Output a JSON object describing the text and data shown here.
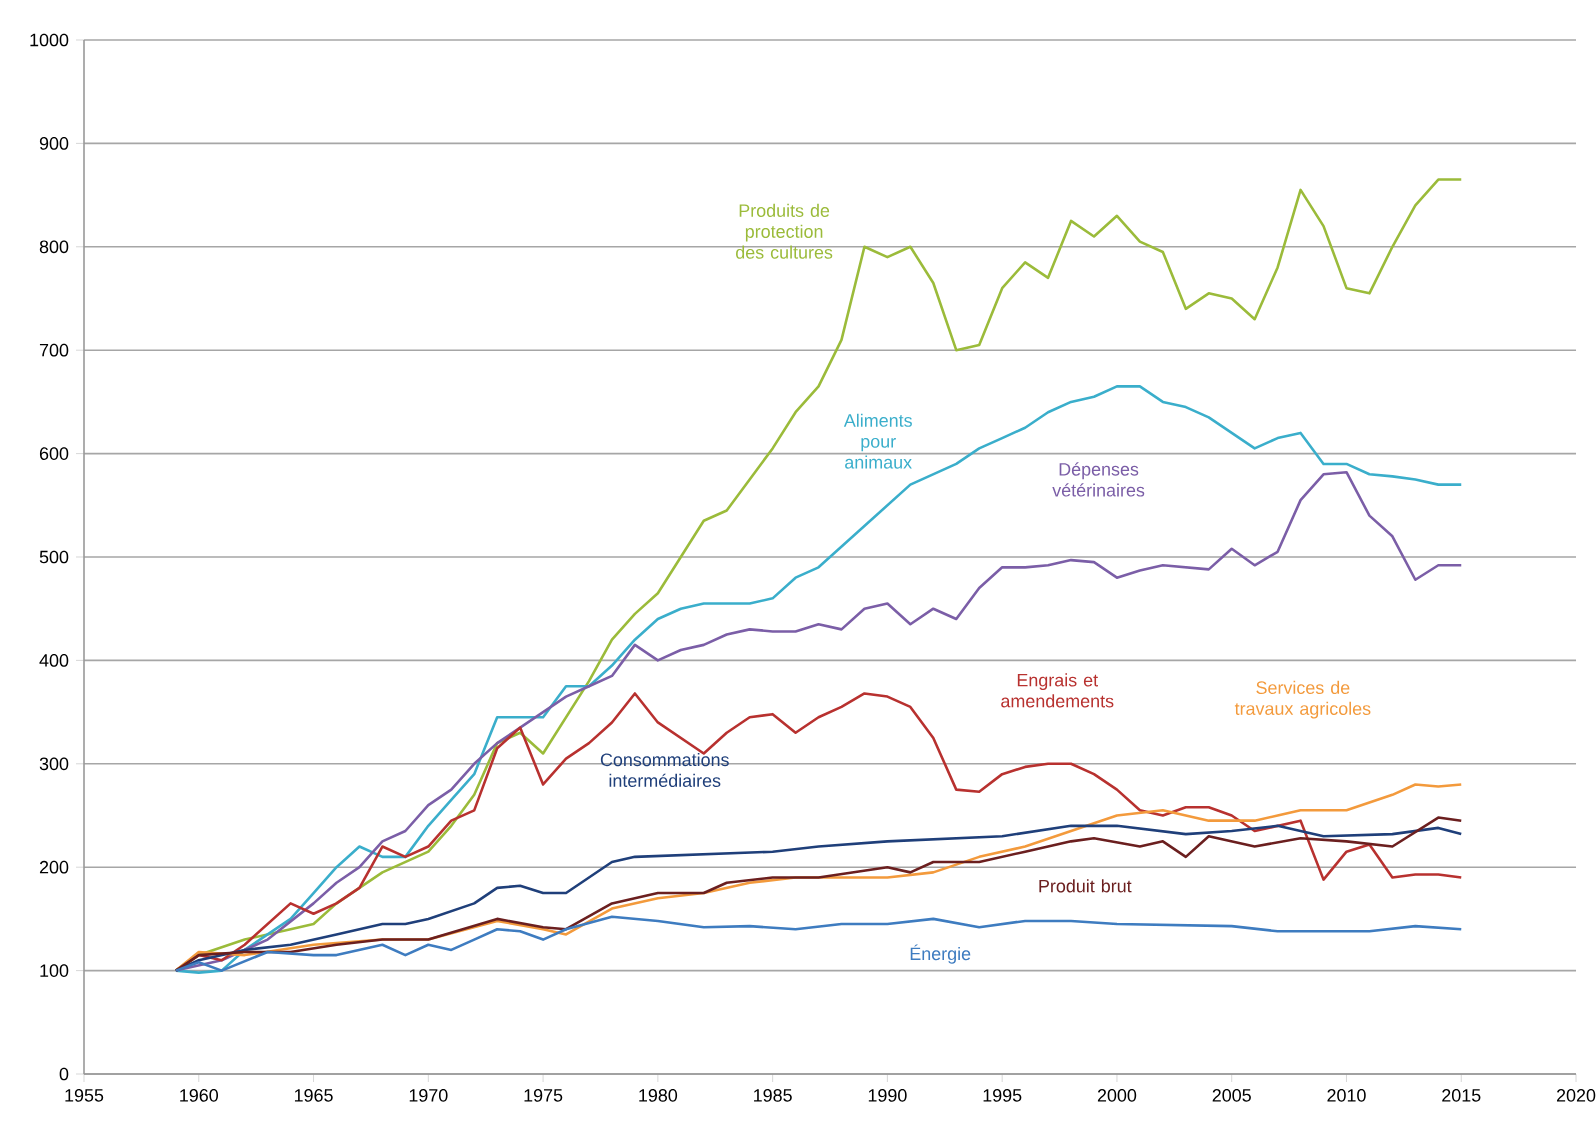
{
  "chart_data": {
    "type": "line",
    "xlim": [
      1955,
      2020
    ],
    "ylim": [
      0,
      1000
    ],
    "xticks": [
      1955,
      1960,
      1965,
      1970,
      1975,
      1980,
      1985,
      1990,
      1995,
      2000,
      2005,
      2010,
      2015,
      2020
    ],
    "yticks": [
      0,
      100,
      200,
      300,
      400,
      500,
      600,
      700,
      800,
      900,
      1000
    ],
    "grid": "y",
    "marker": "none",
    "series": [
      {
        "name": "Produits de protection des cultures",
        "color": "#9bbb3a",
        "x": [
          1959,
          1960,
          1962,
          1964,
          1965,
          1966,
          1968,
          1970,
          1971,
          1972,
          1973,
          1974,
          1975,
          1976,
          1977,
          1978,
          1979,
          1980,
          1981,
          1982,
          1983,
          1984,
          1985,
          1986,
          1987,
          1988,
          1989,
          1990,
          1991,
          1992,
          1993,
          1994,
          1995,
          1996,
          1997,
          1998,
          1999,
          2000,
          2001,
          2002,
          2003,
          2004,
          2005,
          2006,
          2007,
          2008,
          2009,
          2010,
          2011,
          2012,
          2013,
          2014,
          2015
        ],
        "values": [
          100,
          115,
          130,
          140,
          145,
          165,
          195,
          215,
          240,
          270,
          320,
          330,
          310,
          345,
          380,
          420,
          445,
          465,
          500,
          535,
          545,
          575,
          605,
          640,
          665,
          710,
          800,
          790,
          800,
          765,
          700,
          705,
          760,
          785,
          770,
          825,
          810,
          830,
          805,
          795,
          740,
          755,
          750,
          730,
          780,
          855,
          820,
          760,
          755,
          800,
          840,
          865,
          865
        ]
      },
      {
        "name": "Aliments pour animaux",
        "color": "#3aaecb",
        "x": [
          1959,
          1960,
          1961,
          1962,
          1963,
          1964,
          1965,
          1966,
          1967,
          1968,
          1969,
          1970,
          1971,
          1972,
          1973,
          1974,
          1975,
          1976,
          1977,
          1978,
          1979,
          1980,
          1981,
          1982,
          1983,
          1984,
          1985,
          1986,
          1987,
          1988,
          1989,
          1990,
          1991,
          1992,
          1993,
          1994,
          1995,
          1996,
          1997,
          1998,
          1999,
          2000,
          2001,
          2002,
          2003,
          2004,
          2005,
          2006,
          2007,
          2008,
          2009,
          2010,
          2011,
          2012,
          2013,
          2014,
          2015
        ],
        "values": [
          100,
          98,
          100,
          120,
          135,
          150,
          175,
          200,
          220,
          210,
          210,
          240,
          265,
          290,
          345,
          345,
          345,
          375,
          375,
          395,
          420,
          440,
          450,
          455,
          455,
          455,
          460,
          480,
          490,
          510,
          530,
          550,
          570,
          580,
          590,
          605,
          615,
          625,
          640,
          650,
          655,
          665,
          665,
          650,
          645,
          635,
          620,
          605,
          615,
          620,
          590,
          590,
          580,
          578,
          575,
          570,
          570
        ]
      },
      {
        "name": "Dépenses vétérinaires",
        "color": "#7b5ea7",
        "x": [
          1959,
          1961,
          1963,
          1965,
          1966,
          1967,
          1968,
          1969,
          1970,
          1971,
          1972,
          1973,
          1974,
          1975,
          1976,
          1977,
          1978,
          1979,
          1980,
          1981,
          1982,
          1983,
          1984,
          1985,
          1986,
          1987,
          1988,
          1989,
          1990,
          1991,
          1992,
          1993,
          1994,
          1995,
          1996,
          1997,
          1998,
          1999,
          2000,
          2001,
          2002,
          2003,
          2004,
          2005,
          2006,
          2007,
          2008,
          2009,
          2010,
          2011,
          2012,
          2013,
          2014,
          2015
        ],
        "values": [
          100,
          110,
          130,
          165,
          185,
          200,
          225,
          235,
          260,
          275,
          300,
          320,
          335,
          350,
          365,
          375,
          385,
          415,
          400,
          410,
          415,
          425,
          430,
          428,
          428,
          435,
          430,
          450,
          455,
          435,
          450,
          440,
          470,
          490,
          490,
          492,
          497,
          495,
          480,
          487,
          492,
          490,
          488,
          508,
          492,
          505,
          555,
          580,
          582,
          540,
          520,
          478,
          492,
          492
        ]
      },
      {
        "name": "Engrais et amendements",
        "color": "#b8312f",
        "x": [
          1959,
          1960,
          1961,
          1962,
          1963,
          1964,
          1965,
          1966,
          1967,
          1968,
          1969,
          1970,
          1971,
          1972,
          1973,
          1974,
          1975,
          1976,
          1977,
          1978,
          1979,
          1980,
          1981,
          1982,
          1983,
          1984,
          1985,
          1986,
          1987,
          1988,
          1989,
          1990,
          1991,
          1992,
          1993,
          1994,
          1995,
          1996,
          1997,
          1998,
          1999,
          2000,
          2001,
          2002,
          2003,
          2004,
          2005,
          2006,
          2007,
          2008,
          2009,
          2010,
          2011,
          2012,
          2013,
          2014,
          2015
        ],
        "values": [
          100,
          115,
          110,
          125,
          145,
          165,
          155,
          165,
          180,
          220,
          210,
          220,
          245,
          255,
          315,
          335,
          280,
          305,
          320,
          340,
          368,
          340,
          325,
          310,
          330,
          345,
          348,
          330,
          345,
          355,
          368,
          365,
          355,
          325,
          275,
          273,
          290,
          297,
          300,
          300,
          290,
          275,
          255,
          250,
          258,
          258,
          250,
          235,
          240,
          245,
          188,
          215,
          222,
          190,
          193,
          193,
          190
        ]
      },
      {
        "name": "Services de travaux agricoles",
        "color": "#f39a3c",
        "x": [
          1959,
          1960,
          1962,
          1965,
          1968,
          1970,
          1973,
          1975,
          1976,
          1978,
          1980,
          1982,
          1984,
          1986,
          1988,
          1990,
          1992,
          1994,
          1996,
          1998,
          2000,
          2002,
          2004,
          2006,
          2007,
          2008,
          2010,
          2012,
          2013,
          2014,
          2015
        ],
        "values": [
          100,
          118,
          115,
          125,
          130,
          130,
          148,
          140,
          135,
          160,
          170,
          175,
          185,
          190,
          190,
          190,
          195,
          210,
          220,
          235,
          250,
          255,
          245,
          245,
          250,
          255,
          255,
          270,
          280,
          278,
          280
        ]
      },
      {
        "name": "Consommations intermédiaires",
        "color": "#1f3f7a",
        "x": [
          1959,
          1960,
          1962,
          1964,
          1966,
          1968,
          1969,
          1970,
          1972,
          1973,
          1974,
          1975,
          1976,
          1977,
          1978,
          1979,
          1985,
          1987,
          1990,
          1995,
          1998,
          2000,
          2003,
          2005,
          2007,
          2008,
          2009,
          2012,
          2014,
          2015
        ],
        "values": [
          100,
          110,
          120,
          125,
          135,
          145,
          145,
          150,
          165,
          180,
          182,
          175,
          175,
          190,
          205,
          210,
          215,
          220,
          225,
          230,
          240,
          240,
          232,
          235,
          240,
          235,
          230,
          232,
          238,
          232
        ]
      },
      {
        "name": "Produit brut",
        "color": "#6b1f1f",
        "x": [
          1959,
          1960,
          1962,
          1964,
          1966,
          1968,
          1970,
          1973,
          1975,
          1976,
          1978,
          1980,
          1982,
          1983,
          1985,
          1987,
          1990,
          1991,
          1992,
          1994,
          1996,
          1998,
          1999,
          2001,
          2002,
          2003,
          2004,
          2006,
          2008,
          2010,
          2012,
          2014,
          2015
        ],
        "values": [
          100,
          115,
          118,
          118,
          125,
          130,
          130,
          150,
          142,
          140,
          165,
          175,
          175,
          185,
          190,
          190,
          200,
          195,
          205,
          205,
          215,
          225,
          228,
          220,
          225,
          210,
          230,
          220,
          228,
          225,
          220,
          248,
          245
        ]
      },
      {
        "name": "Énergie",
        "color": "#3e7cc0",
        "x": [
          1959,
          1960,
          1961,
          1963,
          1965,
          1966,
          1968,
          1969,
          1970,
          1971,
          1972,
          1973,
          1974,
          1975,
          1976,
          1978,
          1980,
          1982,
          1984,
          1986,
          1988,
          1990,
          1992,
          1994,
          1996,
          1998,
          2000,
          2005,
          2007,
          2011,
          2013,
          2015
        ],
        "values": [
          100,
          108,
          100,
          118,
          115,
          115,
          125,
          115,
          125,
          120,
          130,
          140,
          138,
          130,
          140,
          152,
          148,
          142,
          143,
          140,
          145,
          145,
          150,
          142,
          148,
          148,
          145,
          143,
          138,
          138,
          143,
          140
        ]
      }
    ]
  }
}
